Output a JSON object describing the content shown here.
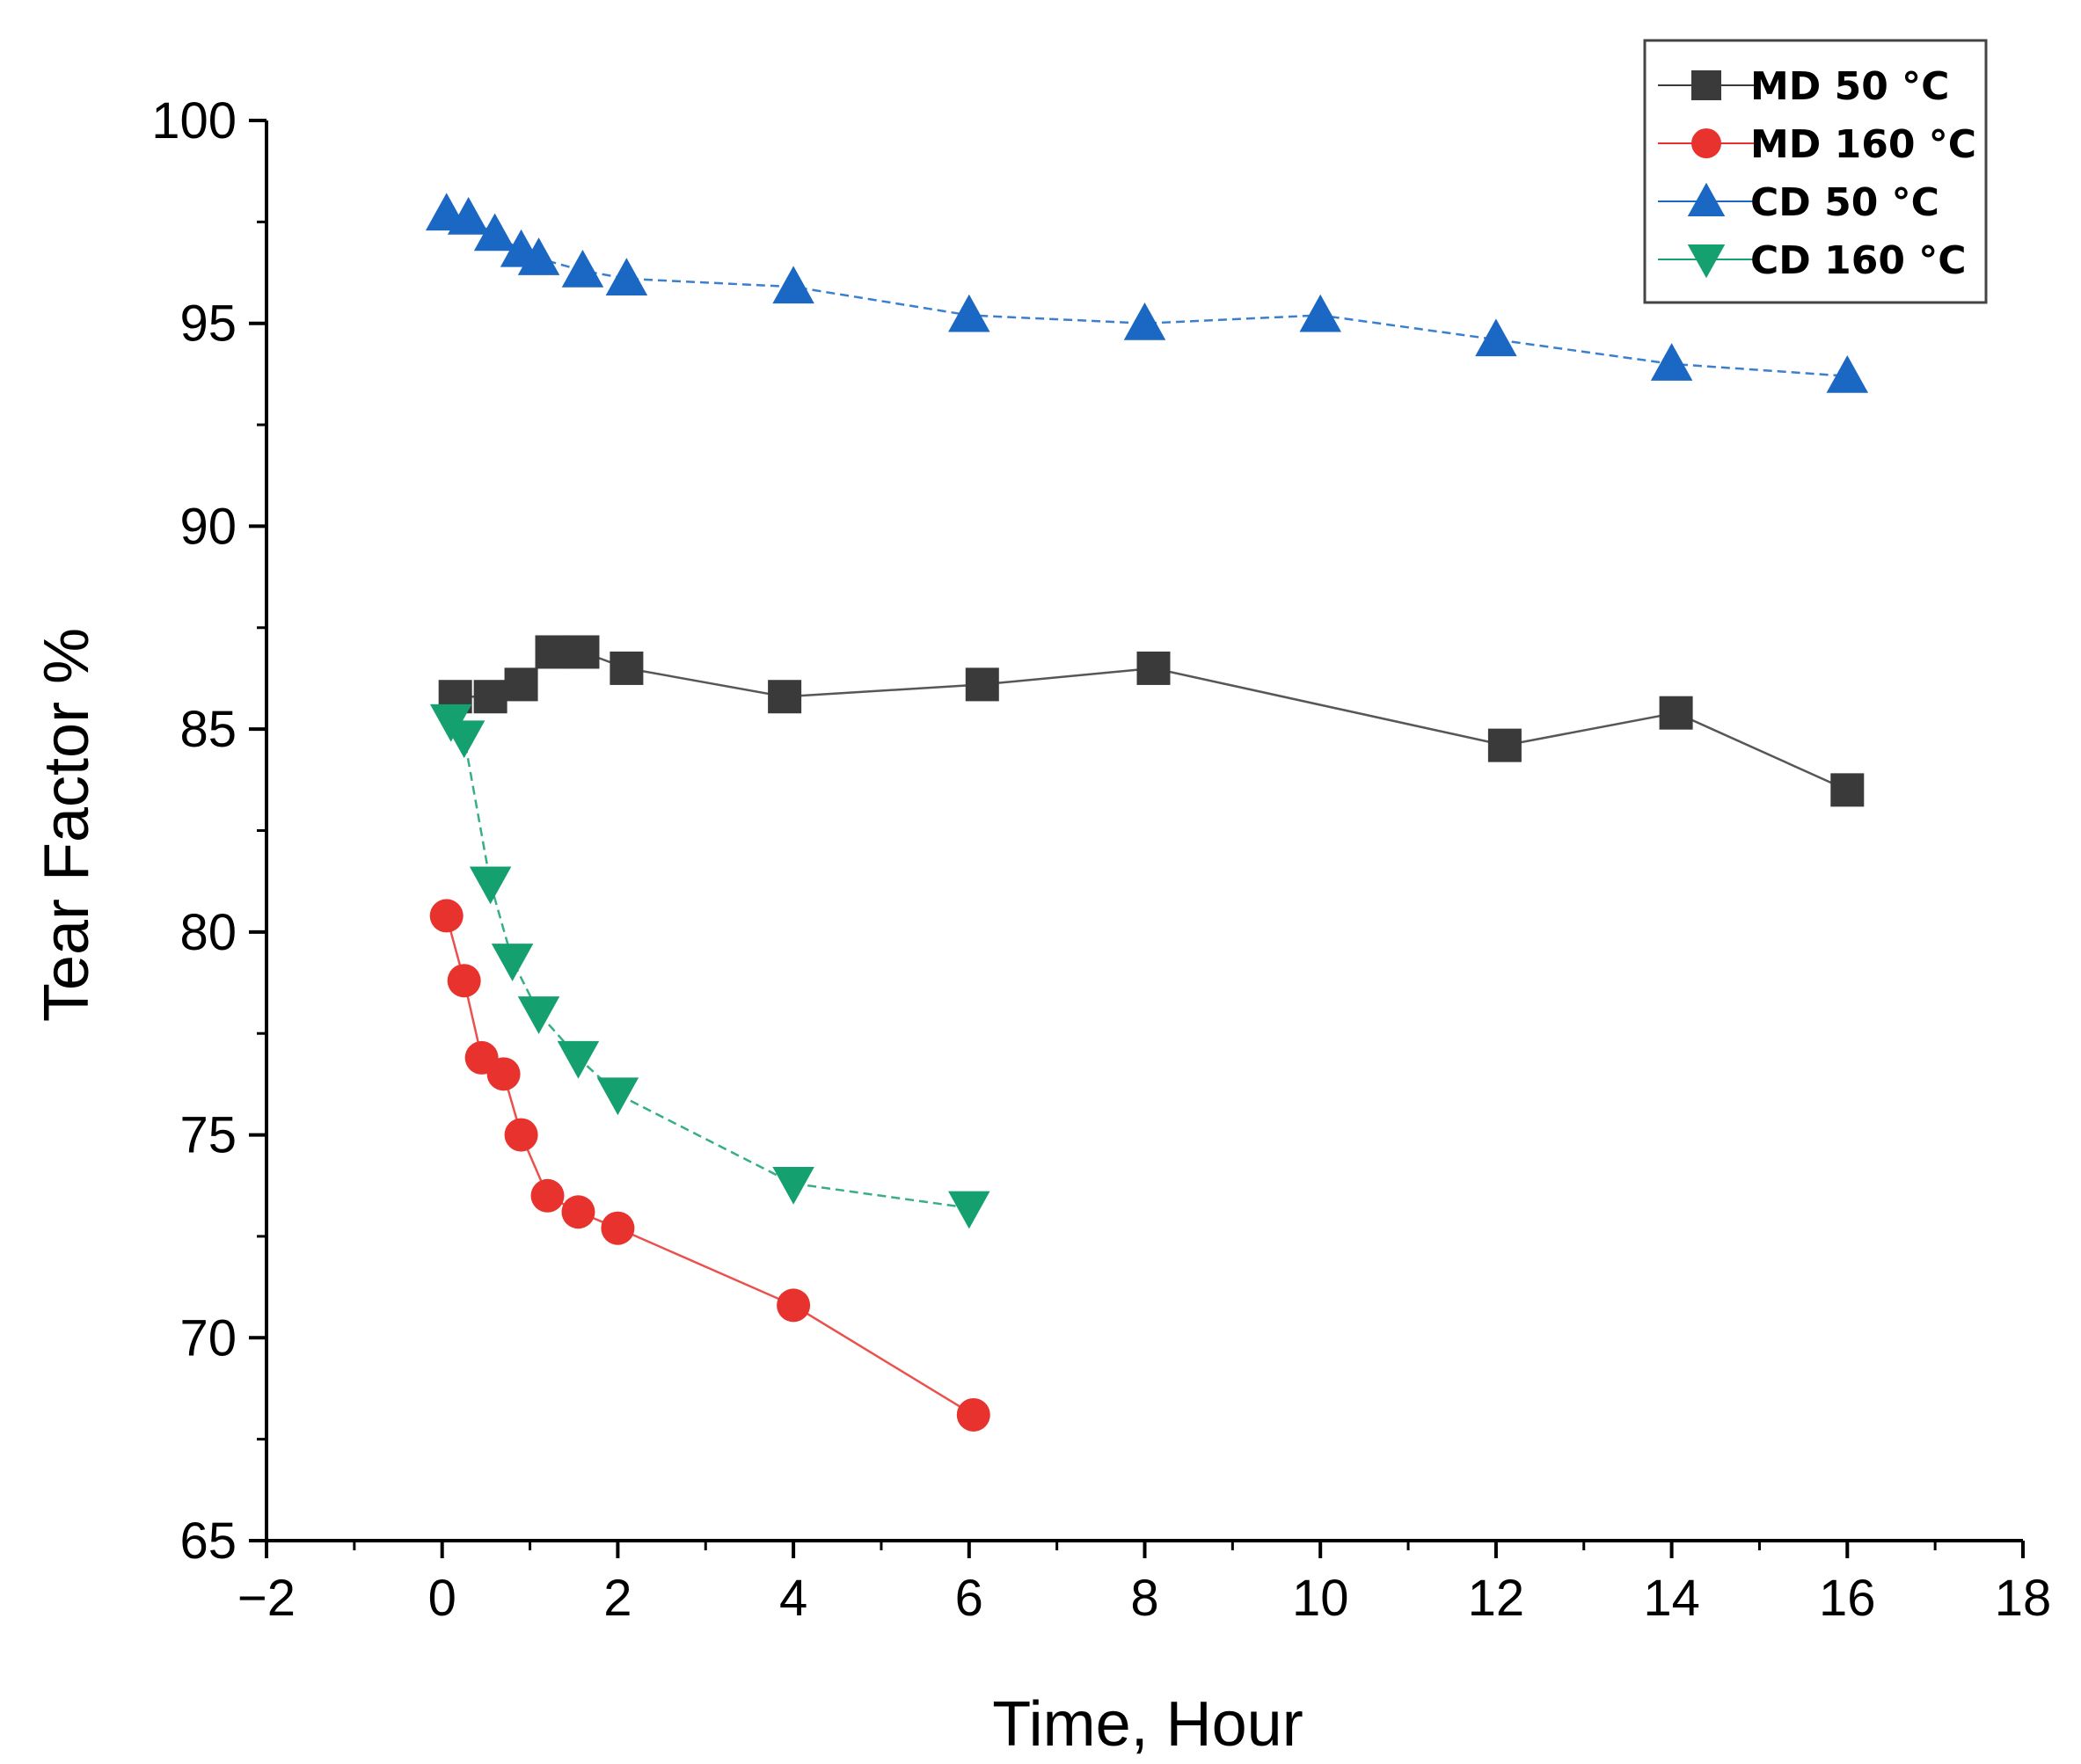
{
  "chart_data": {
    "type": "line",
    "title": "",
    "xlabel": "Time, Hour",
    "ylabel": "Tear Factor %",
    "xlim": [
      -2,
      18
    ],
    "ylim": [
      65,
      100
    ],
    "x_ticks": [
      -2,
      0,
      2,
      4,
      6,
      8,
      10,
      12,
      14,
      16,
      18
    ],
    "y_ticks": [
      65,
      70,
      75,
      80,
      85,
      90,
      95,
      100
    ],
    "x_tick_labels": [
      "−2",
      "0",
      "2",
      "4",
      "6",
      "8",
      "10",
      "12",
      "14",
      "16",
      "18"
    ],
    "y_tick_labels": [
      "65",
      "70",
      "75",
      "80",
      "85",
      "90",
      "95",
      "100"
    ],
    "grid": false,
    "legend_position": "top-right",
    "series": [
      {
        "name": "MD 50 °C",
        "marker": "square",
        "color": "#3a3a3a",
        "x": [
          0.15,
          0.55,
          0.9,
          1.25,
          1.6,
          2.1,
          3.9,
          6.15,
          8.1,
          12.1,
          14.05,
          16.0
        ],
        "y": [
          85.8,
          85.8,
          86.1,
          86.9,
          86.9,
          86.5,
          85.8,
          86.1,
          86.5,
          84.6,
          85.4,
          83.5
        ]
      },
      {
        "name": "MD 160 °C",
        "marker": "circle",
        "color": "#e8322d",
        "x": [
          0.05,
          0.25,
          0.45,
          0.7,
          0.9,
          1.2,
          1.55,
          2.0,
          4.0,
          6.05
        ],
        "y": [
          80.4,
          78.8,
          76.9,
          76.5,
          75.0,
          73.5,
          73.1,
          72.7,
          70.8,
          68.1
        ]
      },
      {
        "name": "CD 50 °C",
        "marker": "triangle-up",
        "color": "#1a68c4",
        "x": [
          0.05,
          0.3,
          0.6,
          0.9,
          1.1,
          1.6,
          2.1,
          4.0,
          6.0,
          8.0,
          10.0,
          12.0,
          14.0,
          16.0
        ],
        "y": [
          97.7,
          97.6,
          97.2,
          96.8,
          96.6,
          96.3,
          96.1,
          95.9,
          95.2,
          95.0,
          95.2,
          94.6,
          94.0,
          93.7
        ]
      },
      {
        "name": "CD 160 °C",
        "marker": "triangle-down",
        "color": "#14a06f",
        "x": [
          0.1,
          0.25,
          0.55,
          0.8,
          1.1,
          1.55,
          2.0,
          4.0,
          6.0
        ],
        "y": [
          85.2,
          84.8,
          81.2,
          79.3,
          78.0,
          76.9,
          76.0,
          73.8,
          73.2
        ]
      }
    ]
  }
}
